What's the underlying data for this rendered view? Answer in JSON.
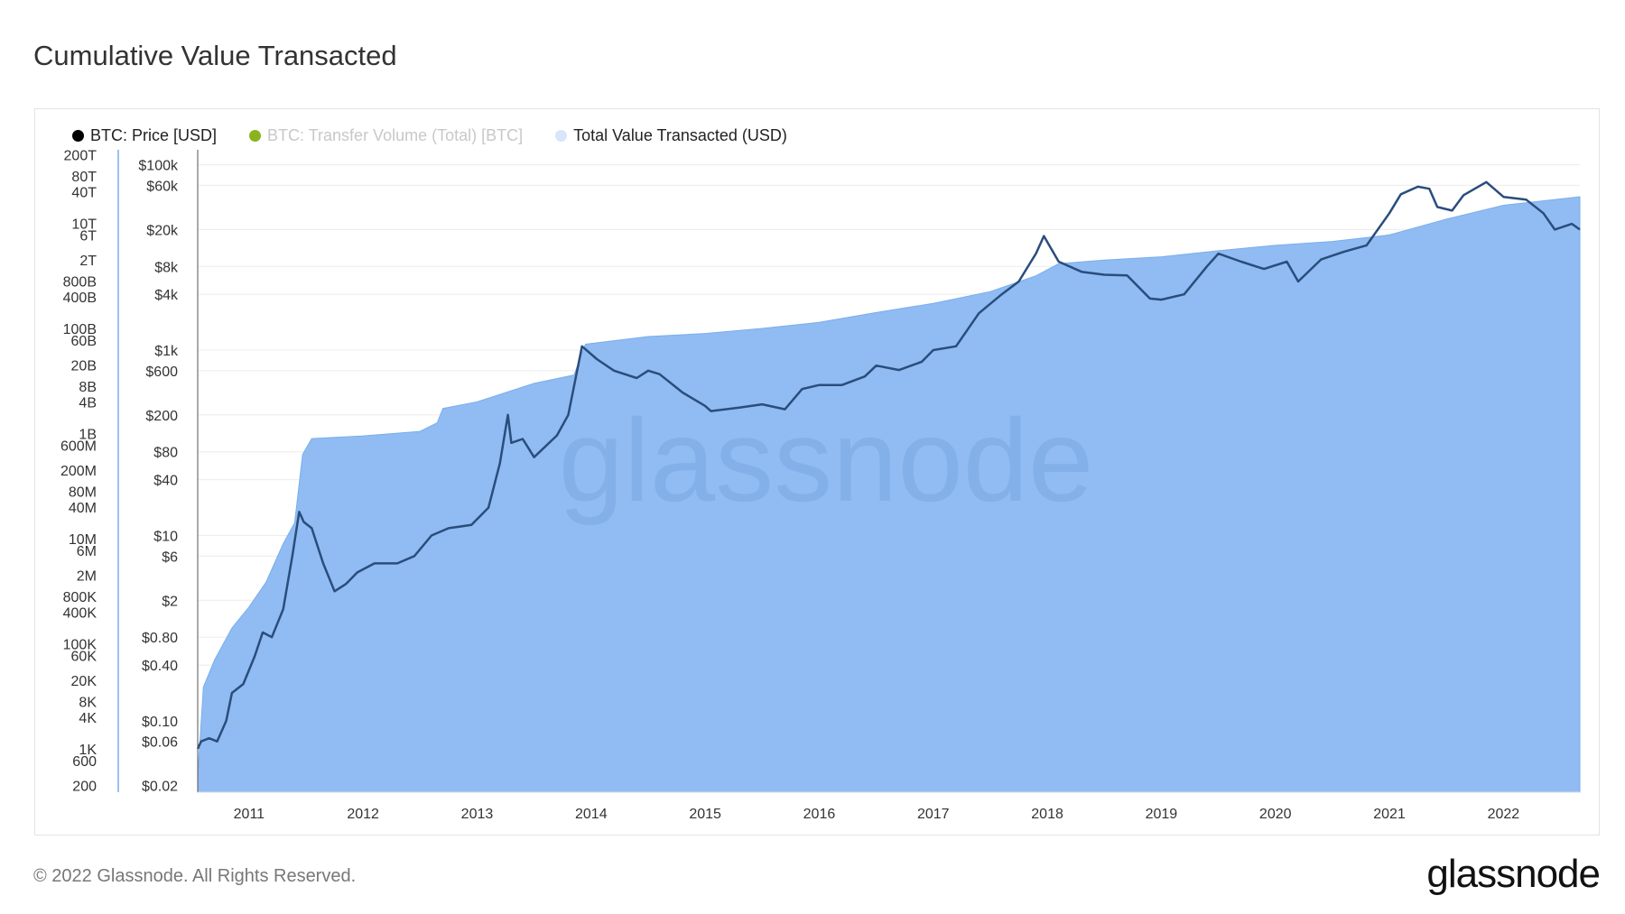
{
  "title": "Cumulative Value Transacted",
  "footer": "© 2022 Glassnode. All Rights Reserved.",
  "brand": "glassnode",
  "watermark": "glassnode",
  "colors": {
    "price": "#0b0b0b",
    "transfer_volume": "#8bb31d",
    "total_value": "#8ab8f2",
    "legend_total_value": "#d7e6fb"
  },
  "legend": [
    {
      "label": "BTC: Price [USD]",
      "color": "#000000",
      "enabled": true
    },
    {
      "label": "BTC: Transfer Volume (Total) [BTC]",
      "color": "#8bb31d",
      "enabled": false
    },
    {
      "label": "Total Value Transacted (USD)",
      "color": "#d7e6fb",
      "enabled": true
    }
  ],
  "chart_data": {
    "type": "area",
    "title": "Cumulative Value Transacted",
    "x_ticks": [
      "2011",
      "2012",
      "2013",
      "2014",
      "2015",
      "2016",
      "2017",
      "2018",
      "2019",
      "2020",
      "2021",
      "2022"
    ],
    "xlim": [
      2010.55,
      2022.67
    ],
    "y_left": {
      "scale": "log",
      "ylim": [
        150,
        250000000000000
      ],
      "ticks": [
        {
          "label": "200T",
          "value": 200000000000000.0
        },
        {
          "label": "80T",
          "value": 80000000000000.0
        },
        {
          "label": "40T",
          "value": 40000000000000.0
        },
        {
          "label": "10T",
          "value": 10000000000000.0
        },
        {
          "label": "6T",
          "value": 6000000000000.0
        },
        {
          "label": "2T",
          "value": 2000000000000.0
        },
        {
          "label": "800B",
          "value": 800000000000.0
        },
        {
          "label": "400B",
          "value": 400000000000.0
        },
        {
          "label": "100B",
          "value": 100000000000.0
        },
        {
          "label": "60B",
          "value": 60000000000.0
        },
        {
          "label": "20B",
          "value": 20000000000.0
        },
        {
          "label": "8B",
          "value": 8000000000.0
        },
        {
          "label": "4B",
          "value": 4000000000.0
        },
        {
          "label": "1B",
          "value": 1000000000.0
        },
        {
          "label": "600M",
          "value": 600000000.0
        },
        {
          "label": "200M",
          "value": 200000000.0
        },
        {
          "label": "80M",
          "value": 80000000.0
        },
        {
          "label": "40M",
          "value": 40000000.0
        },
        {
          "label": "10M",
          "value": 10000000.0
        },
        {
          "label": "6M",
          "value": 6000000.0
        },
        {
          "label": "2M",
          "value": 2000000.0
        },
        {
          "label": "800K",
          "value": 800000.0
        },
        {
          "label": "400K",
          "value": 400000.0
        },
        {
          "label": "100K",
          "value": 100000.0
        },
        {
          "label": "60K",
          "value": 60000.0
        },
        {
          "label": "20K",
          "value": 20000.0
        },
        {
          "label": "8K",
          "value": 8000.0
        },
        {
          "label": "4K",
          "value": 4000.0
        },
        {
          "label": "1K",
          "value": 1000.0
        },
        {
          "label": "600",
          "value": 600
        },
        {
          "label": "200",
          "value": 200
        }
      ]
    },
    "y_right": {
      "scale": "log",
      "ylim": [
        0.017,
        145000
      ],
      "ticks": [
        {
          "label": "$100k",
          "value": 100000
        },
        {
          "label": "$60k",
          "value": 60000
        },
        {
          "label": "$20k",
          "value": 20000
        },
        {
          "label": "$8k",
          "value": 8000
        },
        {
          "label": "$4k",
          "value": 4000
        },
        {
          "label": "$1k",
          "value": 1000
        },
        {
          "label": "$600",
          "value": 600
        },
        {
          "label": "$200",
          "value": 200
        },
        {
          "label": "$80",
          "value": 80
        },
        {
          "label": "$40",
          "value": 40
        },
        {
          "label": "$10",
          "value": 10
        },
        {
          "label": "$6",
          "value": 6
        },
        {
          "label": "$2",
          "value": 2
        },
        {
          "label": "$0.80",
          "value": 0.8
        },
        {
          "label": "$0.40",
          "value": 0.4
        },
        {
          "label": "$0.10",
          "value": 0.1
        },
        {
          "label": "$0.06",
          "value": 0.06
        },
        {
          "label": "$0.02",
          "value": 0.02
        }
      ]
    },
    "series": [
      {
        "name": "Total Value Transacted (USD)",
        "axis": "left",
        "points": [
          [
            2010.55,
            300
          ],
          [
            2010.6,
            15000.0
          ],
          [
            2010.7,
            50000.0
          ],
          [
            2010.85,
            200000.0
          ],
          [
            2011.0,
            500000.0
          ],
          [
            2011.15,
            1500000.0
          ],
          [
            2011.3,
            8000000.0
          ],
          [
            2011.4,
            20000000.0
          ],
          [
            2011.47,
            400000000.0
          ],
          [
            2011.55,
            800000000.0
          ],
          [
            2012.0,
            900000000.0
          ],
          [
            2012.5,
            1100000000.0
          ],
          [
            2012.65,
            1600000000.0
          ],
          [
            2012.7,
            3000000000.0
          ],
          [
            2013.0,
            4000000000.0
          ],
          [
            2013.25,
            6000000000.0
          ],
          [
            2013.5,
            9000000000.0
          ],
          [
            2013.85,
            13000000000.0
          ],
          [
            2013.95,
            50000000000.0
          ],
          [
            2014.5,
            70000000000.0
          ],
          [
            2015.0,
            80000000000.0
          ],
          [
            2015.5,
            100000000000.0
          ],
          [
            2016.0,
            130000000000.0
          ],
          [
            2016.5,
            200000000000.0
          ],
          [
            2017.0,
            300000000000.0
          ],
          [
            2017.5,
            500000000000.0
          ],
          [
            2017.9,
            1000000000000.0
          ],
          [
            2018.1,
            1700000000000.0
          ],
          [
            2018.5,
            2000000000000.0
          ],
          [
            2019.0,
            2300000000000.0
          ],
          [
            2019.5,
            3000000000000.0
          ],
          [
            2020.0,
            3800000000000.0
          ],
          [
            2020.5,
            4500000000000.0
          ],
          [
            2021.0,
            6000000000000.0
          ],
          [
            2021.5,
            12000000000000.0
          ],
          [
            2022.0,
            22000000000000.0
          ],
          [
            2022.67,
            32000000000000.0
          ]
        ]
      },
      {
        "name": "BTC: Price [USD]",
        "axis": "right",
        "points": [
          [
            2010.55,
            0.05
          ],
          [
            2010.58,
            0.06
          ],
          [
            2010.65,
            0.065
          ],
          [
            2010.72,
            0.06
          ],
          [
            2010.8,
            0.1
          ],
          [
            2010.85,
            0.2
          ],
          [
            2010.95,
            0.25
          ],
          [
            2011.05,
            0.5
          ],
          [
            2011.12,
            0.9
          ],
          [
            2011.2,
            0.8
          ],
          [
            2011.3,
            1.6
          ],
          [
            2011.38,
            6
          ],
          [
            2011.44,
            18
          ],
          [
            2011.48,
            14
          ],
          [
            2011.55,
            12
          ],
          [
            2011.65,
            5
          ],
          [
            2011.75,
            2.5
          ],
          [
            2011.85,
            3
          ],
          [
            2011.95,
            4
          ],
          [
            2012.1,
            5
          ],
          [
            2012.3,
            5
          ],
          [
            2012.45,
            6
          ],
          [
            2012.6,
            10
          ],
          [
            2012.75,
            12
          ],
          [
            2012.95,
            13
          ],
          [
            2013.1,
            20
          ],
          [
            2013.2,
            60
          ],
          [
            2013.27,
            200
          ],
          [
            2013.3,
            100
          ],
          [
            2013.4,
            110
          ],
          [
            2013.5,
            70
          ],
          [
            2013.7,
            120
          ],
          [
            2013.8,
            200
          ],
          [
            2013.92,
            1100
          ],
          [
            2014.05,
            800
          ],
          [
            2014.2,
            600
          ],
          [
            2014.4,
            500
          ],
          [
            2014.5,
            600
          ],
          [
            2014.6,
            550
          ],
          [
            2014.8,
            350
          ],
          [
            2015.0,
            250
          ],
          [
            2015.05,
            220
          ],
          [
            2015.3,
            240
          ],
          [
            2015.5,
            260
          ],
          [
            2015.7,
            230
          ],
          [
            2015.85,
            380
          ],
          [
            2016.0,
            420
          ],
          [
            2016.2,
            420
          ],
          [
            2016.4,
            520
          ],
          [
            2016.5,
            680
          ],
          [
            2016.7,
            610
          ],
          [
            2016.9,
            750
          ],
          [
            2017.0,
            1000
          ],
          [
            2017.2,
            1100
          ],
          [
            2017.4,
            2500
          ],
          [
            2017.6,
            4000
          ],
          [
            2017.75,
            5500
          ],
          [
            2017.9,
            11000
          ],
          [
            2017.97,
            17000
          ],
          [
            2018.1,
            9000
          ],
          [
            2018.3,
            7000
          ],
          [
            2018.5,
            6500
          ],
          [
            2018.7,
            6400
          ],
          [
            2018.9,
            3600
          ],
          [
            2019.0,
            3500
          ],
          [
            2019.2,
            4000
          ],
          [
            2019.4,
            8000
          ],
          [
            2019.5,
            11000
          ],
          [
            2019.7,
            9000
          ],
          [
            2019.9,
            7500
          ],
          [
            2020.1,
            9000
          ],
          [
            2020.2,
            5500
          ],
          [
            2020.4,
            9500
          ],
          [
            2020.6,
            11500
          ],
          [
            2020.8,
            13500
          ],
          [
            2021.0,
            30000
          ],
          [
            2021.1,
            48000
          ],
          [
            2021.25,
            58000
          ],
          [
            2021.35,
            55000
          ],
          [
            2021.42,
            35000
          ],
          [
            2021.55,
            32000
          ],
          [
            2021.65,
            47000
          ],
          [
            2021.85,
            65000
          ],
          [
            2022.0,
            45000
          ],
          [
            2022.2,
            42000
          ],
          [
            2022.35,
            30000
          ],
          [
            2022.45,
            20000
          ],
          [
            2022.6,
            23000
          ],
          [
            2022.67,
            20000
          ]
        ]
      }
    ],
    "grid": true,
    "legend_position": "top-left"
  }
}
